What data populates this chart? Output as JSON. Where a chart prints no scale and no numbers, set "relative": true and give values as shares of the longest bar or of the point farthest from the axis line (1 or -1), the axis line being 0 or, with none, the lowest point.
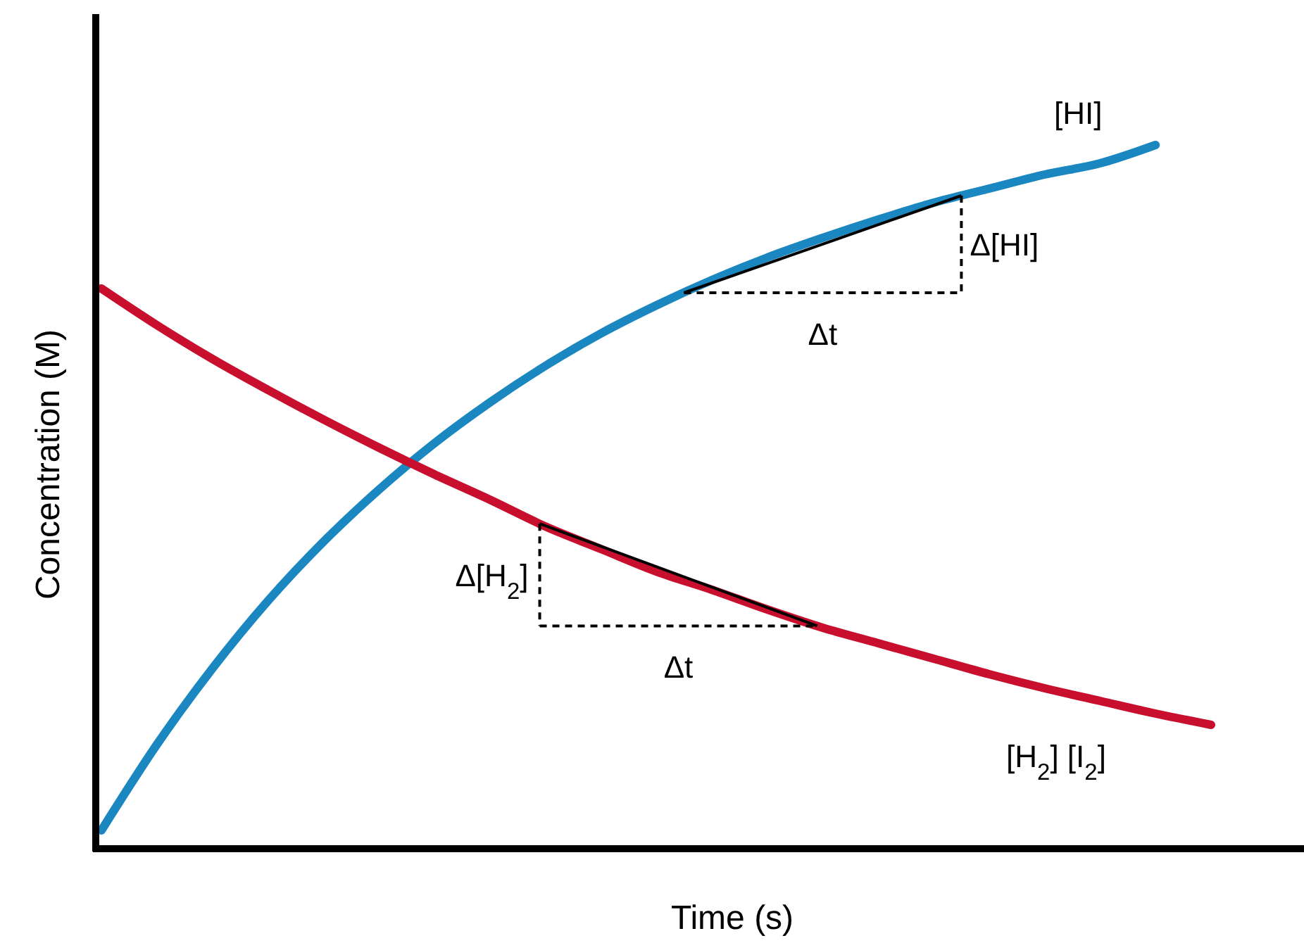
{
  "chart_data": {
    "type": "line",
    "xlabel": "Time (s)",
    "ylabel": "Concentration (M)",
    "relative": true,
    "categories": [
      null,
      null,
      null,
      null,
      null,
      null,
      null,
      null,
      null,
      null,
      null,
      null,
      null,
      null,
      null,
      null,
      null,
      null,
      null,
      null,
      null
    ],
    "series": [
      {
        "name": "[HI]",
        "color": "#1a87c0",
        "values": [
          0.026,
          0.148,
          0.256,
          0.352,
          0.436,
          0.51,
          0.576,
          0.634,
          0.686,
          0.732,
          0.772,
          0.808,
          0.84,
          0.868,
          0.894,
          0.918,
          0.938,
          0.958,
          0.974,
          1,
          null
        ]
      },
      {
        "name": "[H$_{2}$] [I$_{2}$]",
        "color": "#c8102e",
        "values": [
          0.796,
          0.744,
          0.696,
          0.652,
          0.61,
          0.57,
          0.532,
          0.496,
          0.458,
          0.426,
          0.394,
          0.368,
          0.34,
          0.314,
          0.292,
          0.27,
          0.248,
          0.228,
          0.21,
          0.192,
          0.176
        ]
      }
    ],
    "annotations": [
      "Δ[HI]",
      "Δt",
      "Δ[H$_{2}$]",
      "Δt"
    ]
  }
}
